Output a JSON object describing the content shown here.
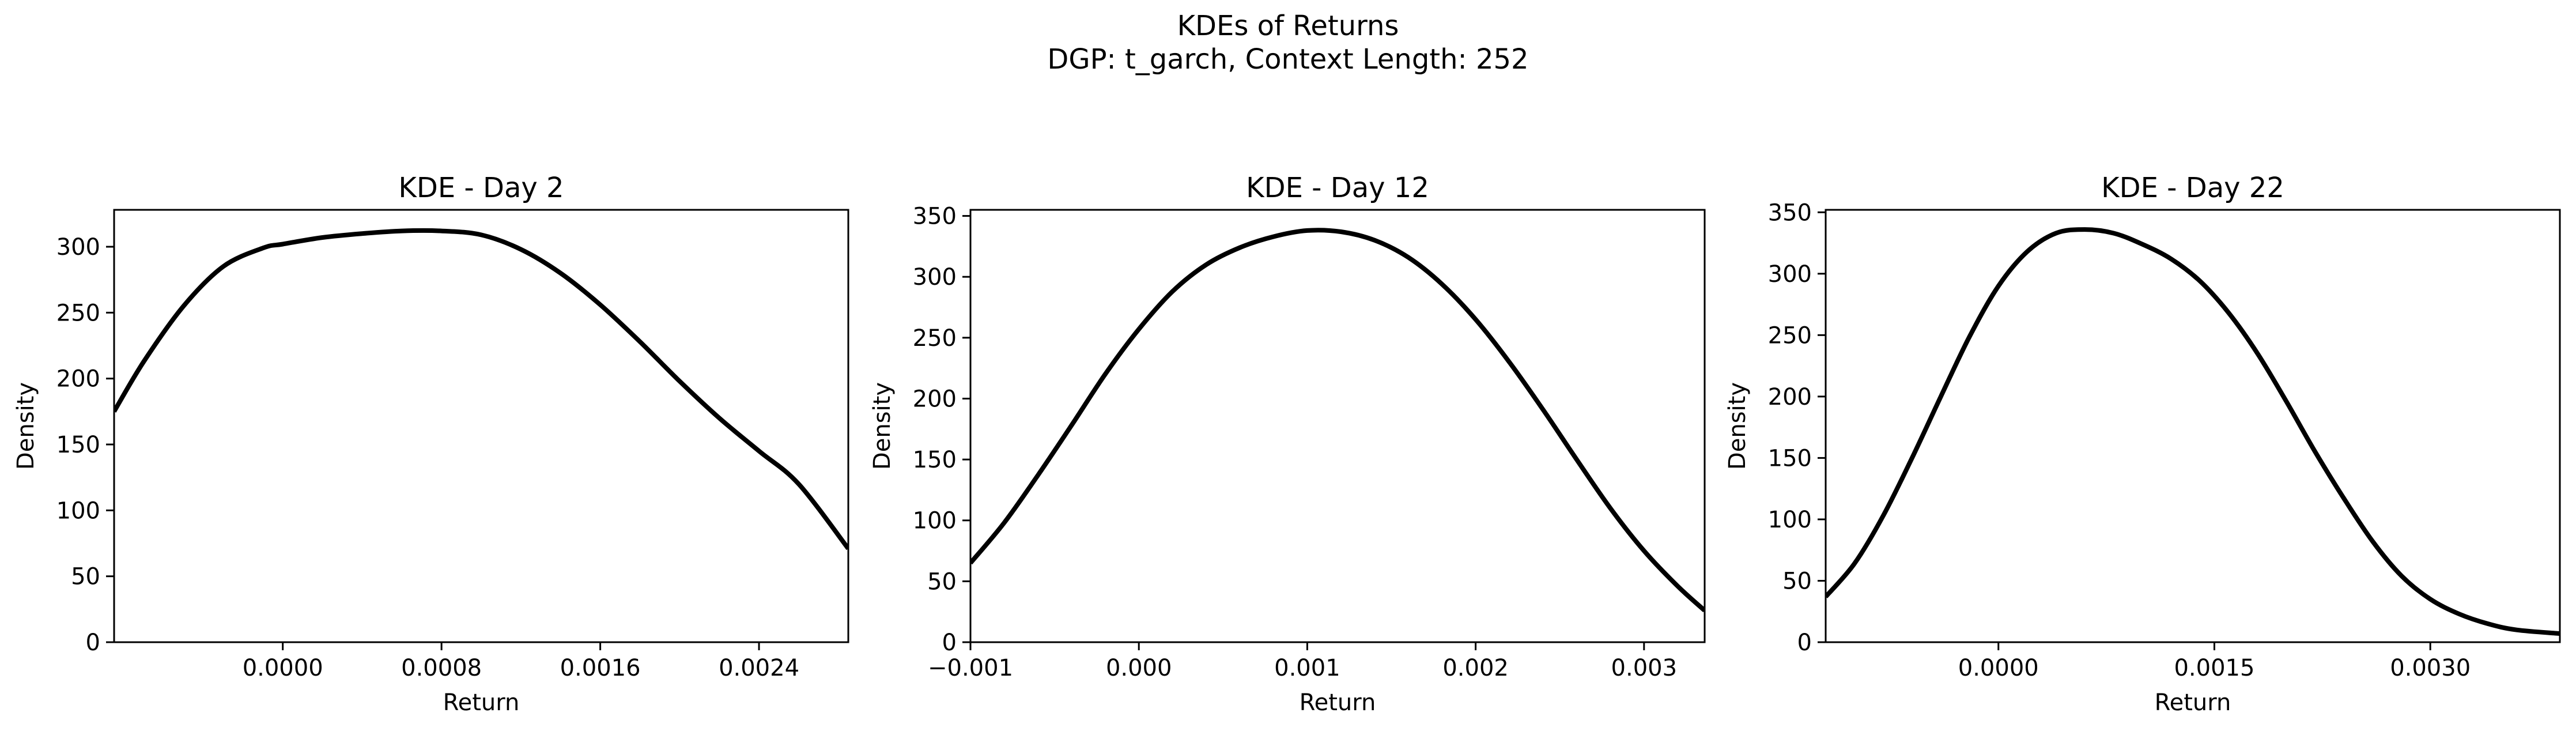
{
  "figure": {
    "title_line1": "KDEs of Returns",
    "title_line2": "DGP: t_garch, Context Length: 252"
  },
  "chart_data": [
    {
      "type": "line",
      "title": "KDE - Day 2",
      "xlabel": "Return",
      "ylabel": "Density",
      "xlim": [
        -0.00085,
        0.00285
      ],
      "ylim": [
        0,
        328
      ],
      "xticks": [
        0.0,
        0.0008,
        0.0016,
        0.0024
      ],
      "xtick_labels": [
        "0.0000",
        "0.0008",
        "0.0016",
        "0.0024"
      ],
      "yticks": [
        0,
        50,
        100,
        150,
        200,
        250,
        300
      ],
      "ytick_labels": [
        "0",
        "50",
        "100",
        "150",
        "200",
        "250",
        "300"
      ],
      "grid": false,
      "series": [
        {
          "color": "#000000",
          "x": [
            -0.00085,
            -0.0007,
            -0.0005,
            -0.0003,
            -0.0001,
            0.0,
            0.0002,
            0.0004,
            0.0006,
            0.0008,
            0.001,
            0.0012,
            0.0014,
            0.0016,
            0.0018,
            0.002,
            0.0022,
            0.0024,
            0.0026,
            0.00285
          ],
          "y": [
            175,
            213,
            255,
            285,
            299,
            302,
            307,
            310,
            312,
            312,
            309,
            298,
            280,
            256,
            228,
            198,
            170,
            145,
            120,
            71
          ]
        }
      ]
    },
    {
      "type": "line",
      "title": "KDE - Day 12",
      "xlabel": "Return",
      "ylabel": "Density",
      "xlim": [
        -0.001,
        0.00336
      ],
      "ylim": [
        0,
        355
      ],
      "xticks": [
        -0.001,
        0.0,
        0.001,
        0.002,
        0.003
      ],
      "xtick_labels": [
        "−0.001",
        "0.000",
        "0.001",
        "0.002",
        "0.003"
      ],
      "yticks": [
        0,
        50,
        100,
        150,
        200,
        250,
        300,
        350
      ],
      "ytick_labels": [
        "0",
        "50",
        "100",
        "150",
        "200",
        "250",
        "300",
        "350"
      ],
      "grid": false,
      "series": [
        {
          "color": "#000000",
          "x": [
            -0.001,
            -0.0008,
            -0.0006,
            -0.0004,
            -0.0002,
            0.0,
            0.0002,
            0.0004,
            0.0006,
            0.0008,
            0.001,
            0.0012,
            0.0014,
            0.0016,
            0.0018,
            0.002,
            0.0022,
            0.0024,
            0.0026,
            0.0028,
            0.003,
            0.0032,
            0.00336
          ],
          "y": [
            65,
            98,
            137,
            178,
            220,
            257,
            288,
            310,
            324,
            333,
            338,
            337,
            330,
            316,
            294,
            265,
            230,
            191,
            150,
            110,
            75,
            46,
            26
          ]
        }
      ]
    },
    {
      "type": "line",
      "title": "KDE - Day 22",
      "xlabel": "Return",
      "ylabel": "Density",
      "xlim": [
        -0.0012,
        0.0039
      ],
      "ylim": [
        0,
        352
      ],
      "xticks": [
        0.0,
        0.0015,
        0.003
      ],
      "xtick_labels": [
        "0.0000",
        "0.0015",
        "0.0030"
      ],
      "yticks": [
        0,
        50,
        100,
        150,
        200,
        250,
        300,
        350
      ],
      "ytick_labels": [
        "0",
        "50",
        "100",
        "150",
        "200",
        "250",
        "300",
        "350"
      ],
      "grid": false,
      "series": [
        {
          "color": "#000000",
          "x": [
            -0.0012,
            -0.001,
            -0.0008,
            -0.0006,
            -0.0004,
            -0.0002,
            0.0,
            0.0002,
            0.0004,
            0.0006,
            0.0008,
            0.001,
            0.0012,
            0.0014,
            0.0016,
            0.0018,
            0.002,
            0.0022,
            0.0024,
            0.0026,
            0.0028,
            0.003,
            0.0032,
            0.0034,
            0.0036,
            0.0039
          ],
          "y": [
            37,
            64,
            103,
            150,
            200,
            249,
            290,
            318,
            333,
            336,
            333,
            324,
            312,
            294,
            268,
            235,
            196,
            155,
            117,
            82,
            54,
            35,
            23,
            15,
            10,
            7
          ]
        }
      ]
    }
  ]
}
